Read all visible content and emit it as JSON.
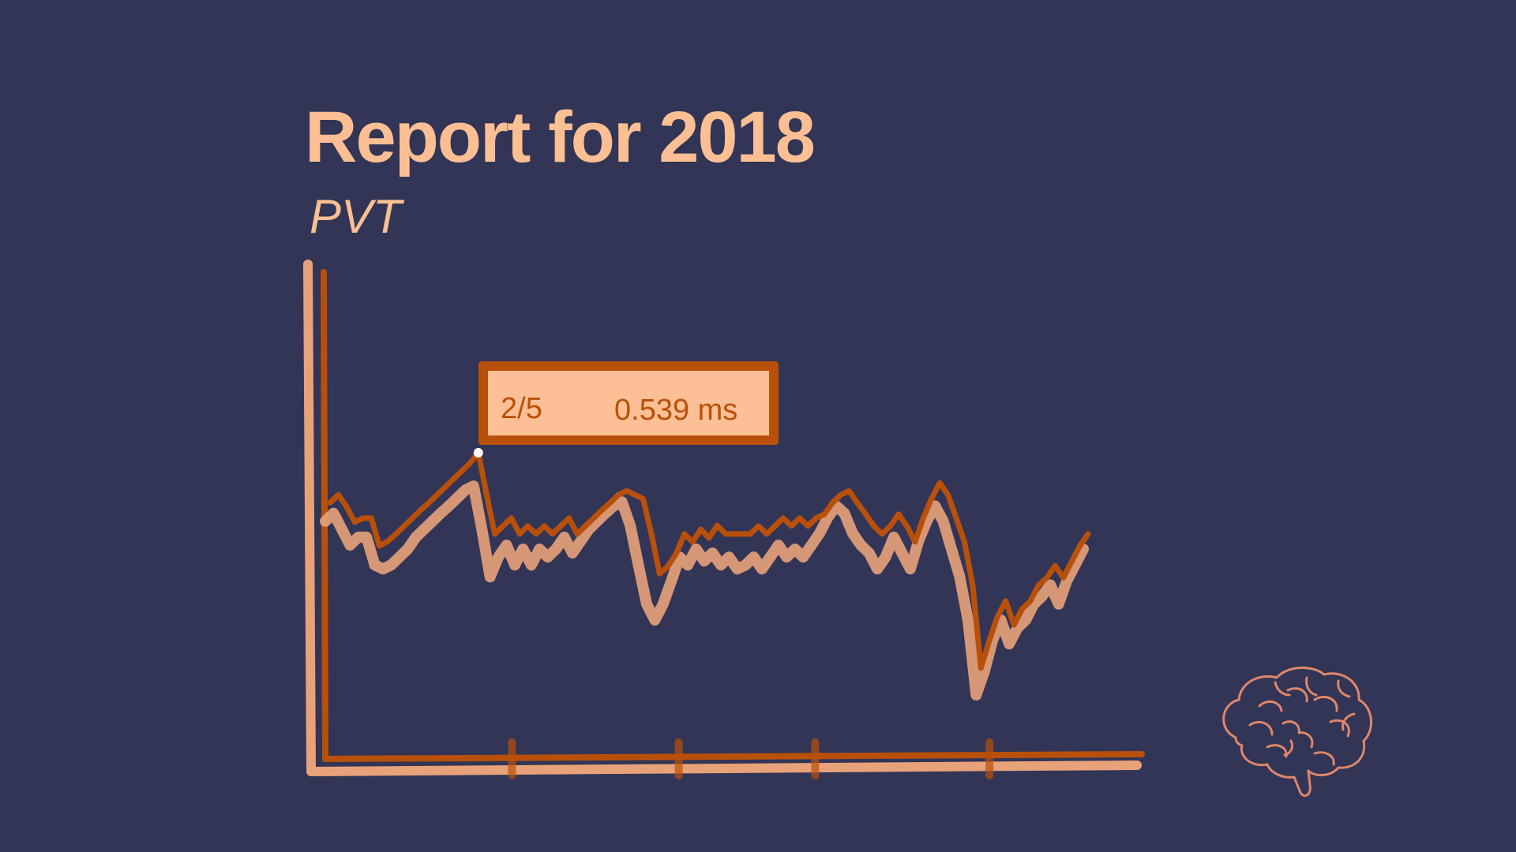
{
  "report": {
    "title": "Report for 2018",
    "subtitle": "PVT"
  },
  "tooltip": {
    "label": "2/5",
    "value": "0.539 ms"
  },
  "colors": {
    "background": "#323556",
    "accent": "#fbbf93",
    "line_dark": "#b9500a",
    "line_light": "#e8a27a",
    "brain": "#e0866a"
  },
  "icons": [
    "brain-icon"
  ],
  "chart_data": {
    "type": "line",
    "title": "PVT",
    "xlim": [
      0,
      100
    ],
    "ylim": [
      0,
      1
    ],
    "x_tick_positions": [
      24,
      46,
      64,
      87
    ],
    "highlighted_point_index": 18,
    "series": [
      {
        "values": [
          0.451,
          0.465,
          0.444,
          0.417,
          0.424,
          0.424,
          0.375,
          0.383,
          0.396,
          0.41,
          0.424,
          0.438,
          0.451,
          0.465,
          0.479,
          0.493,
          0.507,
          0.521,
          0.539,
          0.465,
          0.396,
          0.41,
          0.424,
          0.396,
          0.41,
          0.396,
          0.41,
          0.396,
          0.41,
          0.424,
          0.396,
          0.41,
          0.424,
          0.438,
          0.451,
          0.465,
          0.472,
          0.465,
          0.458,
          0.396,
          0.326,
          0.339,
          0.361,
          0.396,
          0.382,
          0.404,
          0.389,
          0.411,
          0.396,
          0.396,
          0.396,
          0.396,
          0.41,
          0.396,
          0.41,
          0.424,
          0.41,
          0.424,
          0.41,
          0.424,
          0.431,
          0.451,
          0.465,
          0.472,
          0.451,
          0.431,
          0.41,
          0.396,
          0.41,
          0.431,
          0.41,
          0.382,
          0.424,
          0.458,
          0.486,
          0.465,
          0.424,
          0.382,
          0.306,
          0.16,
          0.208,
          0.25,
          0.278,
          0.236,
          0.264,
          0.278,
          0.306,
          0.319,
          0.34,
          0.319,
          0.347,
          0.375,
          0.396
        ]
      },
      {
        "values": [
          0.424,
          0.438,
          0.41,
          0.382,
          0.396,
          0.396,
          0.347,
          0.34,
          0.347,
          0.361,
          0.375,
          0.396,
          0.41,
          0.424,
          0.438,
          0.451,
          0.465,
          0.479,
          0.486,
          0.41,
          0.326,
          0.361,
          0.382,
          0.347,
          0.375,
          0.347,
          0.375,
          0.361,
          0.375,
          0.396,
          0.368,
          0.389,
          0.41,
          0.424,
          0.438,
          0.451,
          0.458,
          0.417,
          0.347,
          0.278,
          0.25,
          0.278,
          0.319,
          0.361,
          0.347,
          0.375,
          0.354,
          0.368,
          0.347,
          0.361,
          0.34,
          0.347,
          0.361,
          0.34,
          0.361,
          0.382,
          0.361,
          0.375,
          0.361,
          0.382,
          0.403,
          0.431,
          0.451,
          0.438,
          0.403,
          0.382,
          0.368,
          0.34,
          0.361,
          0.396,
          0.368,
          0.34,
          0.389,
          0.424,
          0.451,
          0.424,
          0.375,
          0.326,
          0.25,
          0.118,
          0.16,
          0.215,
          0.25,
          0.208,
          0.236,
          0.25,
          0.278,
          0.292,
          0.312,
          0.278,
          0.319,
          0.347,
          0.375
        ]
      }
    ]
  }
}
